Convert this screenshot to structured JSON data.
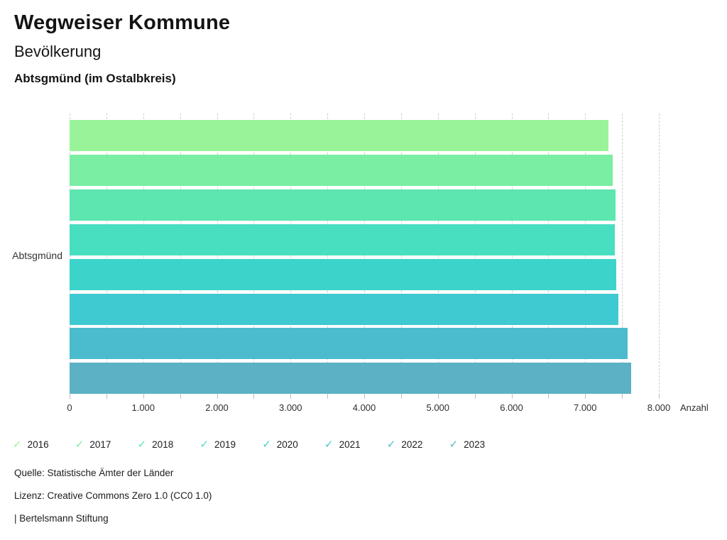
{
  "header": {
    "title": "Wegweiser Kommune",
    "subtitle": "Bevölkerung",
    "location": "Abtsgmünd (im Ostalbkreis)"
  },
  "chart_data": {
    "type": "bar",
    "orientation": "horizontal",
    "category_label": "Abtsgmünd",
    "xlabel": "Anzahl",
    "xlim": [
      0,
      8000
    ],
    "tick_step_minor": 500,
    "tick_step_labeled": 1000,
    "x_tick_labels": [
      "0",
      "1.000",
      "2.000",
      "3.000",
      "4.000",
      "5.000",
      "6.000",
      "7.000",
      "8.000"
    ],
    "grid": {
      "show": true,
      "style": "dashed",
      "color": "#cfcfcf"
    },
    "series": [
      {
        "name": "2016",
        "value": 7320,
        "color": "#99F499"
      },
      {
        "name": "2017",
        "value": 7370,
        "color": "#7AEEA2"
      },
      {
        "name": "2018",
        "value": 7415,
        "color": "#5DE6B0"
      },
      {
        "name": "2019",
        "value": 7405,
        "color": "#48DEC0"
      },
      {
        "name": "2020",
        "value": 7425,
        "color": "#3CD4CA"
      },
      {
        "name": "2021",
        "value": 7455,
        "color": "#3FC9D0"
      },
      {
        "name": "2022",
        "value": 7580,
        "color": "#4BBCCE"
      },
      {
        "name": "2023",
        "value": 7620,
        "color": "#5CB1C4"
      }
    ]
  },
  "legend": {
    "icon": "✓"
  },
  "footer": {
    "source": "Quelle: Statistische Ämter der Länder",
    "license": "Lizenz: Creative Commons Zero 1.0 (CC0 1.0)",
    "attribution": "| Bertelsmann Stiftung"
  }
}
